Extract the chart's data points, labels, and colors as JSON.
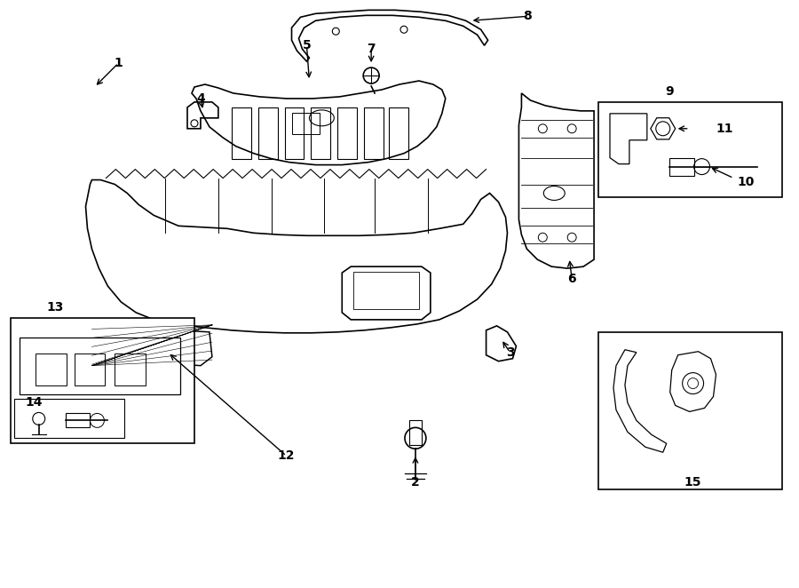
{
  "bg_color": "#ffffff",
  "line_color": "#000000",
  "figsize": [
    9.0,
    6.62
  ],
  "dpi": 100
}
